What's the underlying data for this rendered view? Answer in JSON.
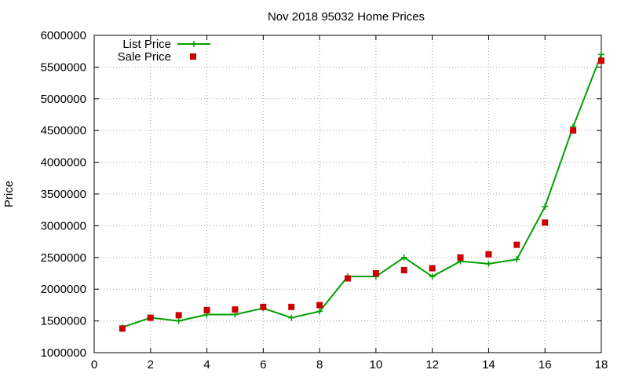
{
  "chart_data": {
    "type": "line",
    "title": "Nov 2018 95032 Home Prices",
    "xlabel": "",
    "ylabel": "Price",
    "xlim": [
      0,
      18
    ],
    "ylim": [
      1000000,
      6000000
    ],
    "xticks": [
      0,
      2,
      4,
      6,
      8,
      10,
      12,
      14,
      16,
      18
    ],
    "yticks": [
      1000000,
      1500000,
      2000000,
      2500000,
      3000000,
      3500000,
      4000000,
      4500000,
      5000000,
      5500000,
      6000000
    ],
    "grid": true,
    "legend_position": "top-left",
    "series": [
      {
        "name": "List Price",
        "style": "line+cross",
        "color": "#00a000",
        "x": [
          1,
          2,
          3,
          4,
          5,
          6,
          7,
          8,
          9,
          10,
          11,
          12,
          13,
          14,
          15,
          16,
          17,
          18
        ],
        "values": [
          1400000,
          1550000,
          1500000,
          1600000,
          1600000,
          1700000,
          1550000,
          1650000,
          2200000,
          2200000,
          2500000,
          2200000,
          2440000,
          2400000,
          2470000,
          3300000,
          4560000,
          5700000
        ]
      },
      {
        "name": "Sale Price",
        "style": "square",
        "color": "#cc0000",
        "x": [
          1,
          2,
          3,
          4,
          5,
          6,
          7,
          8,
          9,
          10,
          11,
          12,
          13,
          14,
          15,
          16,
          17,
          18
        ],
        "values": [
          1380000,
          1550000,
          1590000,
          1670000,
          1680000,
          1720000,
          1720000,
          1750000,
          2170000,
          2250000,
          2300000,
          2330000,
          2500000,
          2550000,
          2700000,
          3050000,
          4500000,
          5600000
        ]
      }
    ]
  }
}
